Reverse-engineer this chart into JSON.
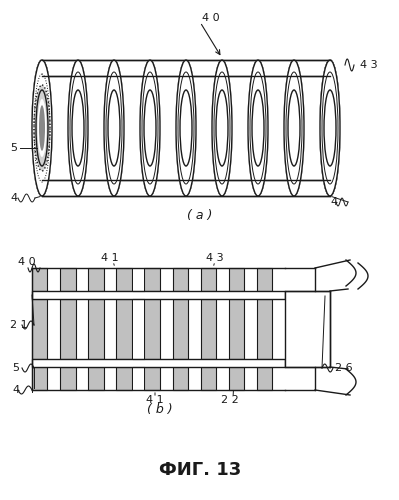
{
  "title": "ФИГ. 13",
  "label_a": "( a )",
  "label_b": "( b )",
  "background_color": "#ffffff",
  "line_color": "#1a1a1a",
  "fill_color": "#c0c0c0",
  "fill_light": "#d8d8d8",
  "labels": {
    "40_a": "4 0",
    "43_a": "4 3",
    "5_a": "5",
    "4a_a": "4",
    "4b_a": "4",
    "40_b": "4 0",
    "41_b_top": "4 1",
    "43_b": "4 3",
    "21_b": "2 1",
    "5_b": "5",
    "4_b": "4",
    "41_b_bot": "4 1",
    "22_b": "2 2",
    "26_b": "2 6"
  },
  "fig_width": 3.99,
  "fig_height": 5.0,
  "dpi": 100
}
